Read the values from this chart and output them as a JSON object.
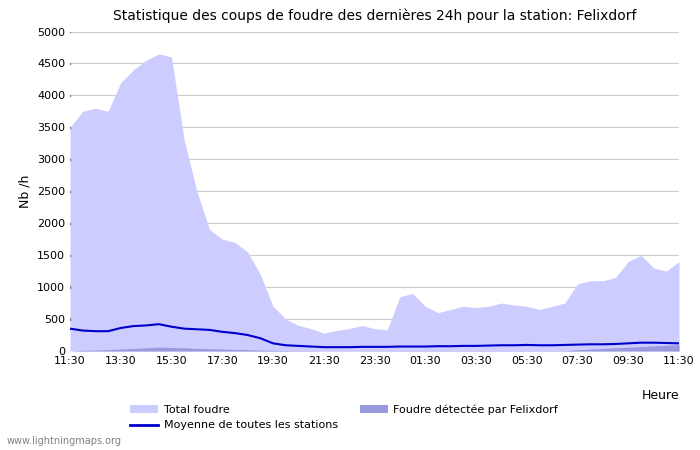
{
  "title": "Statistique des coups de foudre des dernières 24h pour la station: Felixdorf",
  "xlabel": "Heure",
  "ylabel": "Nb /h",
  "ylim": [
    0,
    5000
  ],
  "yticks": [
    0,
    500,
    1000,
    1500,
    2000,
    2500,
    3000,
    3500,
    4000,
    4500,
    5000
  ],
  "x_labels": [
    "11:30",
    "13:30",
    "15:30",
    "17:30",
    "19:30",
    "21:30",
    "23:30",
    "01:30",
    "03:30",
    "05:30",
    "07:30",
    "09:30",
    "11:30"
  ],
  "bg_color": "#ffffff",
  "grid_color": "#cccccc",
  "total_foudre_color": "#ccccff",
  "felixdorf_color": "#9999dd",
  "moyenne_color": "#0000cc",
  "watermark": "www.lightningmaps.org",
  "total_foudre": [
    3500,
    3750,
    3800,
    3750,
    4200,
    4400,
    4550,
    4650,
    4600,
    3300,
    2500,
    1900,
    1750,
    1700,
    1550,
    1200,
    700,
    500,
    400,
    350,
    280,
    320,
    350,
    400,
    350,
    330,
    850,
    900,
    700,
    600,
    650,
    700,
    680,
    700,
    750,
    720,
    700,
    650,
    700,
    750,
    1050,
    1100,
    1100,
    1150,
    1400,
    1500,
    1300,
    1250,
    1400
  ],
  "felixdorf": [
    0,
    10,
    15,
    20,
    30,
    40,
    50,
    60,
    55,
    50,
    40,
    35,
    30,
    25,
    20,
    15,
    10,
    8,
    5,
    5,
    3,
    3,
    3,
    4,
    4,
    4,
    5,
    5,
    5,
    5,
    5,
    5,
    5,
    5,
    5,
    5,
    5,
    5,
    5,
    5,
    20,
    30,
    40,
    50,
    60,
    70,
    80,
    90,
    100
  ],
  "moyenne": [
    350,
    320,
    310,
    310,
    360,
    390,
    400,
    420,
    380,
    350,
    340,
    330,
    300,
    280,
    250,
    200,
    120,
    90,
    80,
    70,
    60,
    60,
    60,
    65,
    65,
    65,
    70,
    70,
    70,
    75,
    75,
    80,
    80,
    85,
    90,
    90,
    95,
    90,
    90,
    95,
    100,
    105,
    105,
    110,
    120,
    130,
    130,
    125,
    120
  ]
}
